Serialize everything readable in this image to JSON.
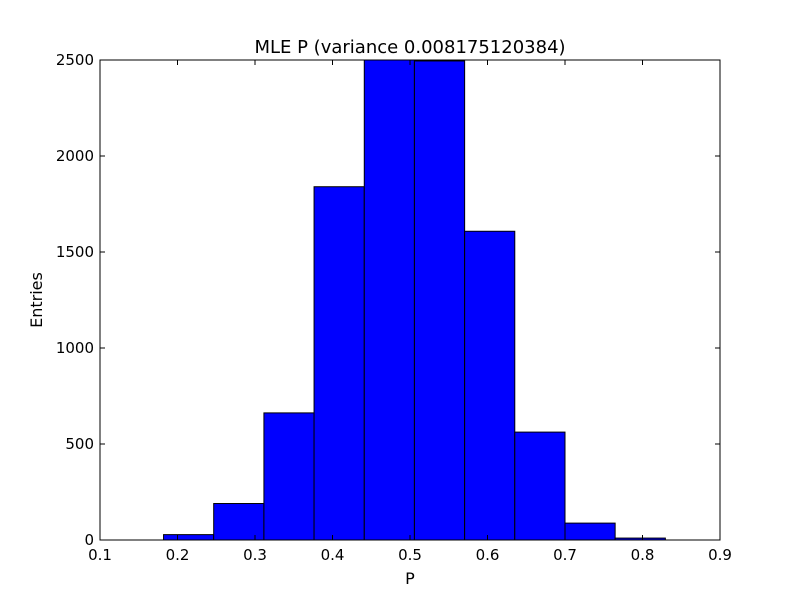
{
  "chart_data": {
    "type": "bar",
    "title": "MLE P (variance 0.008175120384)",
    "xlabel": "P",
    "ylabel": "Entries",
    "xlim": [
      0.1,
      0.9
    ],
    "ylim": [
      0,
      2500
    ],
    "xticks": [
      0.1,
      0.2,
      0.3,
      0.4,
      0.5,
      0.6,
      0.7,
      0.8,
      0.9
    ],
    "yticks": [
      0,
      500,
      1000,
      1500,
      2000,
      2500
    ],
    "bin_edges": [
      0.182,
      0.2467,
      0.3115,
      0.3762,
      0.441,
      0.5057,
      0.5705,
      0.6352,
      0.7,
      0.7647,
      0.8295
    ],
    "values": [
      28,
      190,
      662,
      1840,
      2500,
      2495,
      1608,
      562,
      88,
      10
    ],
    "bar_color": "#0000ff",
    "edge_color": "#000000",
    "grid": false
  }
}
